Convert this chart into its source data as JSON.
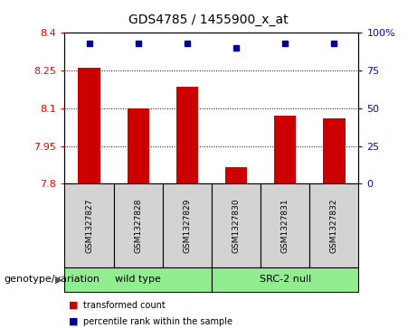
{
  "title": "GDS4785 / 1455900_x_at",
  "samples": [
    "GSM1327827",
    "GSM1327828",
    "GSM1327829",
    "GSM1327830",
    "GSM1327831",
    "GSM1327832"
  ],
  "red_values": [
    8.26,
    8.1,
    8.185,
    7.865,
    8.07,
    8.06
  ],
  "blue_values": [
    93,
    93,
    93,
    90,
    93,
    93
  ],
  "ymin": 7.8,
  "ymax": 8.4,
  "yticks": [
    7.8,
    7.95,
    8.1,
    8.25,
    8.4
  ],
  "ytick_labels": [
    "7.8",
    "7.95",
    "8.1",
    "8.25",
    "8.4"
  ],
  "right_yticks": [
    0,
    25,
    50,
    75,
    100
  ],
  "right_ytick_labels": [
    "0",
    "25",
    "50",
    "75",
    "100%"
  ],
  "grid_lines": [
    7.95,
    8.1,
    8.25
  ],
  "bar_color": "#cc0000",
  "dot_color": "#000099",
  "bar_width": 0.45,
  "group1_label": "wild type",
  "group2_label": "SRC-2 null",
  "group_color": "#90ee90",
  "sample_box_color": "#d3d3d3",
  "xlabel_left": "genotype/variation",
  "legend_red": "transformed count",
  "legend_blue": "percentile rank within the sample",
  "title_fontsize": 10,
  "tick_fontsize": 8,
  "label_fontsize": 8
}
